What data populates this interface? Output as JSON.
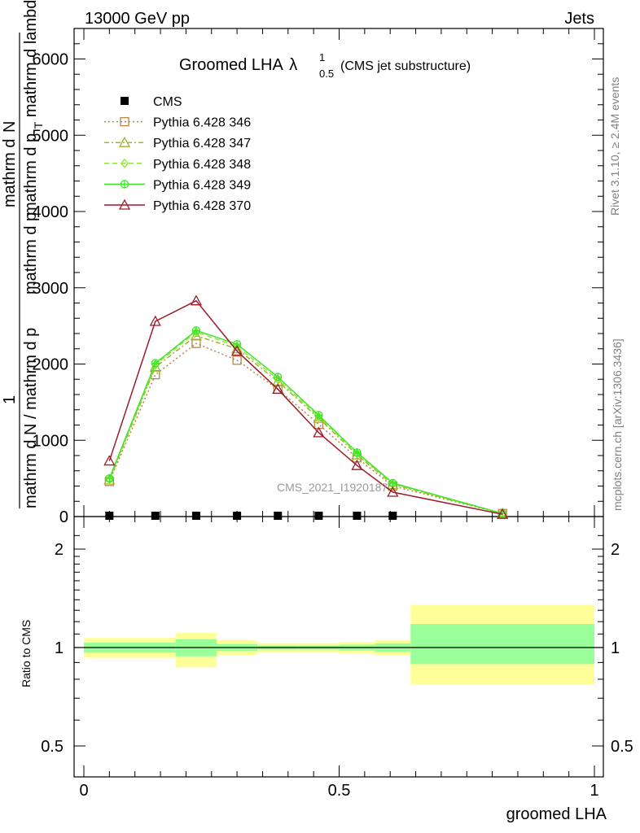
{
  "header": {
    "left": "13000 GeV pp",
    "right": "Jets"
  },
  "side_text": {
    "rivet": "Rivet 3.1.10, ≥ 2.4M events",
    "mcplots": "mcplots.cern.ch [arXiv:1306.3436]"
  },
  "title": {
    "main": "Groomed LHA",
    "lambda": "λ",
    "sub": "0.5",
    "sup": "1",
    "note": "(CMS jet substructure)"
  },
  "watermark": "CMS_2021_I1920187",
  "ylabel_main": {
    "numerator_1": "mathrm d",
    "numerator_2": "N",
    "denominator_1": "mathrm d p",
    "denominator_sub": "T",
    "denominator_2": " mathrm d lambda",
    "prefix_num": "1",
    "prefix_den": "mathrm d N / mathrm d p",
    "prefix_den_2": "mathrm d p"
  },
  "ylabel_ratio": "Ratio to CMS",
  "xlabel": "groomed LHA",
  "main_y_ticks": [
    "0",
    "1000",
    "2000",
    "3000",
    "4000",
    "5000",
    "6000"
  ],
  "ratio_y_ticks": [
    "0.5",
    "1",
    "2"
  ],
  "x_ticks": [
    "0",
    "0.5",
    "1"
  ],
  "colors": {
    "cms": "#000000",
    "p346": "#b8864a",
    "p347": "#9ab824",
    "p348": "#8ee636",
    "p349": "#3ee628",
    "p370": "#9b1b2a",
    "band_inner": "#99ff99",
    "band_outer": "#ffff99"
  },
  "chart_data": {
    "type": "line",
    "x": [
      0.05,
      0.14,
      0.22,
      0.3,
      0.38,
      0.46,
      0.535,
      0.605,
      0.82
    ],
    "xlim": [
      -0.02,
      1.02
    ],
    "ylim": [
      0,
      6400
    ],
    "series": [
      {
        "name": "CMS",
        "marker": "square",
        "style": "none",
        "color": "#000000",
        "values": [
          0,
          0,
          0,
          0,
          0,
          0,
          0,
          0,
          null
        ]
      },
      {
        "name": "Pythia 6.428 346",
        "marker": "open-square",
        "style": "dotted",
        "color": "#b8864a",
        "values": [
          460,
          1860,
          2270,
          2050,
          1670,
          1210,
          770,
          400,
          40
        ]
      },
      {
        "name": "Pythia 6.428 347",
        "marker": "open-triangle",
        "style": "dashdot",
        "color": "#9ab824",
        "values": [
          480,
          1960,
          2370,
          2200,
          1770,
          1290,
          810,
          420,
          40
        ]
      },
      {
        "name": "Pythia 6.428 348",
        "marker": "diamond",
        "style": "dashed",
        "color": "#8ee636",
        "values": [
          490,
          1990,
          2420,
          2230,
          1800,
          1310,
          830,
          430,
          40
        ]
      },
      {
        "name": "Pythia 6.428 349",
        "marker": "circle-plus",
        "style": "solid",
        "color": "#3ee628",
        "values": [
          500,
          2010,
          2440,
          2260,
          1830,
          1330,
          840,
          440,
          40
        ]
      },
      {
        "name": "Pythia 6.428 370",
        "marker": "open-triangle",
        "style": "solid",
        "color": "#9b1b2a",
        "values": [
          730,
          2560,
          2830,
          2170,
          1670,
          1100,
          670,
          320,
          30
        ]
      }
    ],
    "ratio": {
      "ylim": [
        0.4,
        2.4
      ],
      "scale": "log",
      "bins": [
        {
          "x0": 0.0,
          "x1": 0.18,
          "in_lo": 0.965,
          "in_hi": 1.035,
          "out_lo": 0.93,
          "out_hi": 1.07
        },
        {
          "x0": 0.18,
          "x1": 0.26,
          "in_lo": 0.94,
          "in_hi": 1.06,
          "out_lo": 0.87,
          "out_hi": 1.11
        },
        {
          "x0": 0.26,
          "x1": 0.34,
          "in_lo": 0.975,
          "in_hi": 1.025,
          "out_lo": 0.945,
          "out_hi": 1.055
        },
        {
          "x0": 0.34,
          "x1": 0.42,
          "in_lo": 0.985,
          "in_hi": 1.015,
          "out_lo": 0.965,
          "out_hi": 1.03
        },
        {
          "x0": 0.42,
          "x1": 0.5,
          "in_lo": 0.985,
          "in_hi": 1.015,
          "out_lo": 0.965,
          "out_hi": 1.03
        },
        {
          "x0": 0.5,
          "x1": 0.57,
          "in_lo": 0.98,
          "in_hi": 1.02,
          "out_lo": 0.96,
          "out_hi": 1.04
        },
        {
          "x0": 0.57,
          "x1": 0.64,
          "in_lo": 0.97,
          "in_hi": 1.03,
          "out_lo": 0.945,
          "out_hi": 1.055
        },
        {
          "x0": 0.64,
          "x1": 1.0,
          "in_lo": 0.89,
          "in_hi": 1.18,
          "out_lo": 0.77,
          "out_hi": 1.35
        }
      ]
    }
  }
}
